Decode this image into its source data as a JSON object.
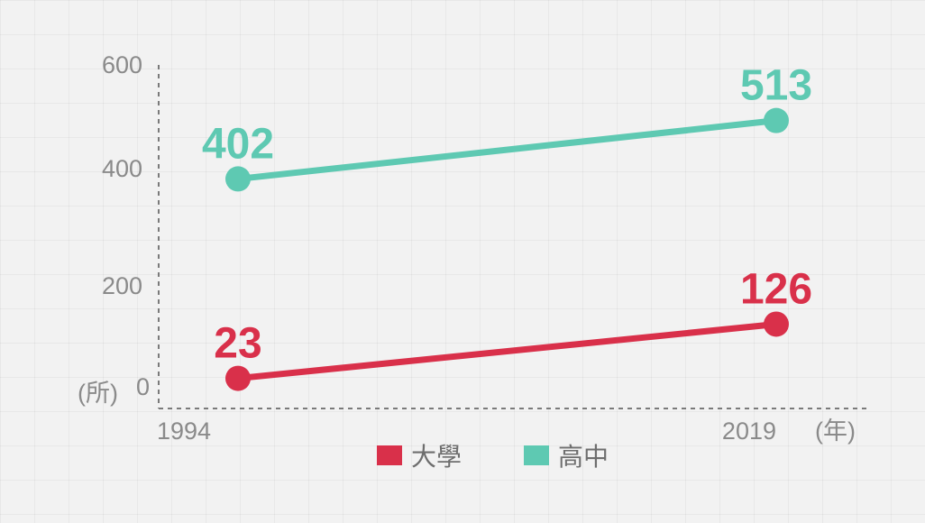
{
  "chart_data": {
    "type": "line",
    "x": [
      "1994",
      "2019"
    ],
    "x_unit": "(年)",
    "y_unit": "(所)",
    "y_ticks": [
      0,
      200,
      400,
      600
    ],
    "ylim": [
      0,
      650
    ],
    "grid": false,
    "legend_position": "bottom",
    "series": [
      {
        "name": "大學",
        "values": [
          23,
          126
        ],
        "color": "#d9304a"
      },
      {
        "name": "高中",
        "values": [
          402,
          513
        ],
        "color": "#5ec9b2"
      }
    ]
  }
}
